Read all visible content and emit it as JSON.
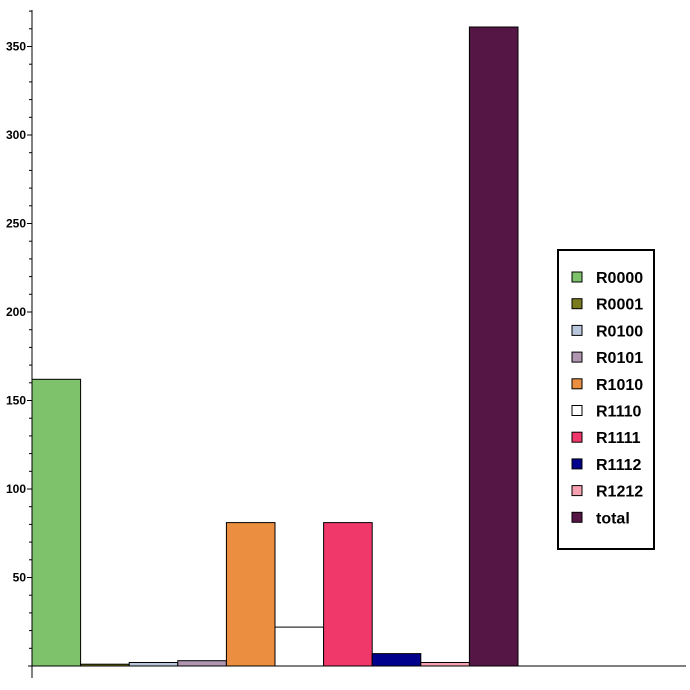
{
  "chart_data": {
    "type": "bar",
    "title": "",
    "xlabel": "",
    "ylabel": "",
    "ylim": [
      0,
      370
    ],
    "yticks": [
      50,
      100,
      150,
      200,
      250,
      300,
      350
    ],
    "grid": false,
    "legend_position": "right",
    "series": [
      {
        "name": "R0000",
        "value": 162,
        "color": "#7fc26c"
      },
      {
        "name": "R0001",
        "value": 1,
        "color": "#7a7a1e"
      },
      {
        "name": "R0100",
        "value": 2,
        "color": "#b8c7dc"
      },
      {
        "name": "R0101",
        "value": 3,
        "color": "#b096b0"
      },
      {
        "name": "R1010",
        "value": 81,
        "color": "#ec8e3f"
      },
      {
        "name": "R1110",
        "value": 22,
        "color": "#ffffff"
      },
      {
        "name": "R1111",
        "value": 81,
        "color": "#f0386b"
      },
      {
        "name": "R1112",
        "value": 7,
        "color": "#00008c"
      },
      {
        "name": "R1212",
        "value": 2,
        "color": "#f7a1b0"
      },
      {
        "name": "total",
        "value": 361,
        "color": "#551646"
      }
    ]
  }
}
